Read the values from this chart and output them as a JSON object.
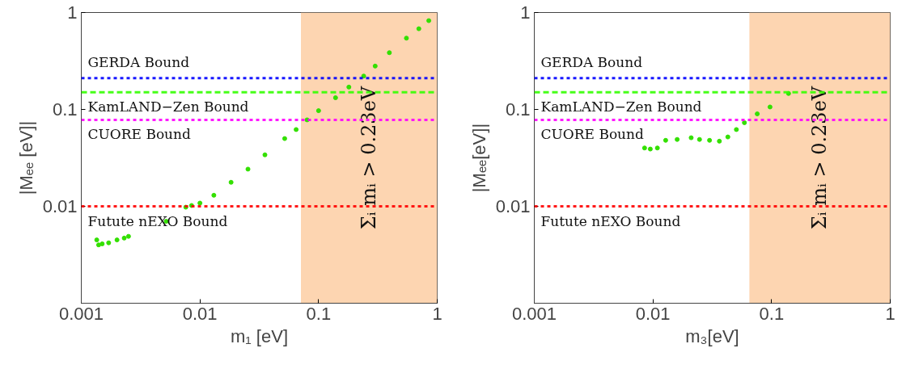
{
  "chart_data": [
    {
      "type": "scatter",
      "xlabel": "m₁ [eV]",
      "ylabel": "|Mₑₑ [eV]|",
      "log": "xy",
      "grid": false,
      "marker": "circle",
      "xlim": [
        0.001,
        1
      ],
      "ylim": [
        0.001,
        1
      ],
      "xticks": [
        0.001,
        0.01,
        0.1,
        1
      ],
      "yticks": [
        0.01,
        0.1,
        1
      ],
      "series": [
        {
          "color": "#33e000",
          "x": [
            0.00135,
            0.0014,
            0.0015,
            0.0017,
            0.002,
            0.0023,
            0.0025,
            0.0052,
            0.0076,
            0.0085,
            0.01,
            0.0131,
            0.0183,
            0.0254,
            0.0353,
            0.0518,
            0.0647,
            0.08,
            0.1,
            0.139,
            0.18,
            0.24,
            0.3,
            0.395,
            0.55,
            0.7,
            0.849
          ],
          "values": [
            0.0045,
            0.004,
            0.0041,
            0.0042,
            0.0045,
            0.0047,
            0.0049,
            0.007,
            0.0098,
            0.0102,
            0.0108,
            0.013,
            0.0177,
            0.0242,
            0.034,
            0.05,
            0.062,
            0.078,
            0.097,
            0.132,
            0.17,
            0.221,
            0.28,
            0.385,
            0.544,
            0.68,
            0.824
          ]
        }
      ],
      "ref_lines": [
        {
          "axis": "y",
          "value": 0.21,
          "label": "GERDA Bound",
          "color": "#0000ff",
          "line_style": "dotted"
        },
        {
          "axis": "y",
          "value": 0.15,
          "label": "KamLAND−Zen Bound",
          "color": "#33ff00",
          "line_style": "dashed"
        },
        {
          "axis": "y",
          "value": 0.078,
          "label": "CUORE Bound",
          "color": "#ff00ff",
          "line_style": "dotted"
        },
        {
          "axis": "y",
          "value": 0.01,
          "label": "Futute nEXO Bound",
          "color": "#ff0000",
          "line_style": "dotted"
        }
      ],
      "bands": [
        {
          "axis": "x",
          "from": 0.071,
          "to": 1,
          "label": "Σᵢ mᵢ > 0.23eV",
          "color": "#fdd5b1"
        }
      ]
    },
    {
      "type": "scatter",
      "xlabel": "m₃[eV]",
      "ylabel": "|Mₑₑ[eV]|",
      "log": "xy",
      "grid": false,
      "marker": "circle",
      "xlim": [
        0.001,
        1
      ],
      "ylim": [
        0.001,
        1
      ],
      "xticks": [
        0.001,
        0.01,
        0.1,
        1
      ],
      "yticks": [
        0.01,
        0.1,
        1
      ],
      "series": [
        {
          "color": "#33e000",
          "x": [
            0.0085,
            0.0095,
            0.0109,
            0.0128,
            0.016,
            0.021,
            0.0247,
            0.03,
            0.0363,
            0.0428,
            0.0505,
            0.059,
            0.0757,
            0.097,
            0.139
          ],
          "values": [
            0.04,
            0.039,
            0.04,
            0.048,
            0.049,
            0.051,
            0.049,
            0.048,
            0.047,
            0.052,
            0.062,
            0.073,
            0.09,
            0.106,
            0.146
          ]
        }
      ],
      "ref_lines": [
        {
          "axis": "y",
          "value": 0.21,
          "label": "GERDA Bound",
          "color": "#0000ff",
          "line_style": "dotted"
        },
        {
          "axis": "y",
          "value": 0.15,
          "label": "KamLAND−Zen Bound",
          "color": "#33ff00",
          "line_style": "dashed"
        },
        {
          "axis": "y",
          "value": 0.078,
          "label": "CUORE Bound",
          "color": "#ff00ff",
          "line_style": "dotted"
        },
        {
          "axis": "y",
          "value": 0.01,
          "label": "Futute nEXO Bound",
          "color": "#ff0000",
          "line_style": "dotted"
        }
      ],
      "bands": [
        {
          "axis": "x",
          "from": 0.065,
          "to": 1,
          "label": "Σᵢ mᵢ > 0.23eV",
          "color": "#fdd5b1"
        }
      ]
    }
  ]
}
